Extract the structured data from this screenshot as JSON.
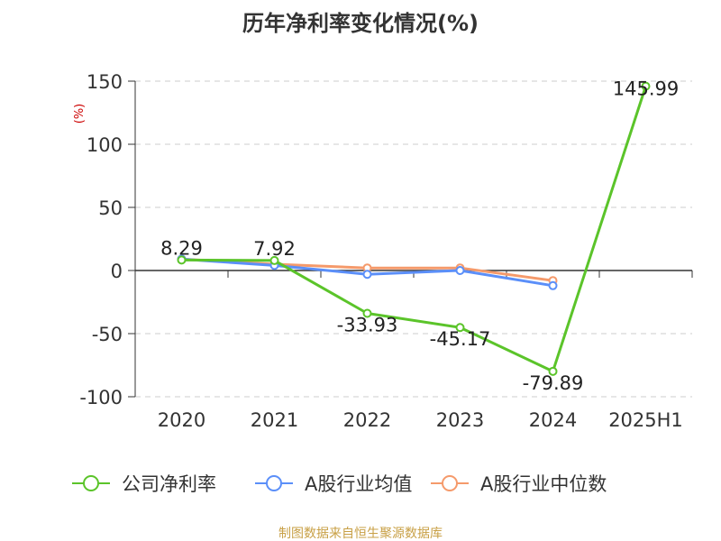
{
  "chart_data": {
    "type": "line",
    "title": "历年净利率变化情况(%)",
    "ylabel": "(%)",
    "xlabel": "",
    "categories": [
      "2020",
      "2021",
      "2022",
      "2023",
      "2024",
      "2025H1"
    ],
    "ylim": [
      -100,
      150
    ],
    "yticks": [
      150,
      100,
      50,
      0,
      -50,
      -100
    ],
    "grid": true,
    "legend_position": "bottom",
    "series": [
      {
        "name": "公司净利率",
        "color": "#5bc42a",
        "values": [
          8.29,
          7.92,
          -33.93,
          -45.17,
          -79.89,
          145.99
        ],
        "labels": [
          "8.29",
          "7.92",
          "-33.93",
          "-45.17",
          "-79.89",
          "145.99"
        ]
      },
      {
        "name": "A股行业均值",
        "color": "#5b8ff9",
        "values": [
          9,
          4,
          -3,
          0,
          -12,
          null
        ]
      },
      {
        "name": "A股行业中位数",
        "color": "#f59a6b",
        "values": [
          9,
          5,
          2,
          2,
          -8,
          null
        ]
      }
    ],
    "source": "制图数据来自恒生聚源数据库"
  }
}
